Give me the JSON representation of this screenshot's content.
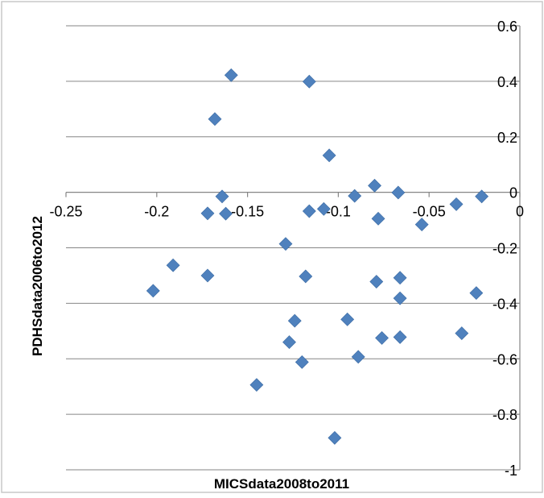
{
  "chart_data": {
    "type": "scatter",
    "title": "",
    "xlabel": "MICSdata2008to2011",
    "ylabel": "PDHSdata2006to2012",
    "xlim": [
      -0.25,
      0
    ],
    "ylim": [
      -1,
      0.6
    ],
    "x_ticks": [
      -0.25,
      -0.2,
      -0.15,
      -0.1,
      -0.05,
      0
    ],
    "y_ticks": [
      0.6,
      0.4,
      0.2,
      0,
      -0.2,
      -0.4,
      -0.6,
      -0.8,
      -1
    ],
    "x_tick_labels": [
      "-0.25",
      "-0.2",
      "-0.15",
      "-0.1",
      "-0.05",
      "0"
    ],
    "y_tick_labels": [
      "0.6",
      "0.4",
      "0.2",
      "0",
      "-0.2",
      "-0.4",
      "-0.6",
      "-0.8",
      "-1"
    ],
    "grid": "horizontal",
    "legend": "none",
    "series": [
      {
        "color": "#4f81bd",
        "marker": "diamond",
        "points": [
          [
            -0.159,
            0.422
          ],
          [
            -0.116,
            0.399
          ],
          [
            -0.168,
            0.264
          ],
          [
            -0.105,
            0.133
          ],
          [
            -0.08,
            0.024
          ],
          [
            -0.067,
            -0.001
          ],
          [
            -0.091,
            -0.013
          ],
          [
            -0.164,
            -0.015
          ],
          [
            -0.021,
            -0.015
          ],
          [
            -0.035,
            -0.043
          ],
          [
            -0.108,
            -0.06
          ],
          [
            -0.116,
            -0.068
          ],
          [
            -0.172,
            -0.076
          ],
          [
            -0.162,
            -0.077
          ],
          [
            -0.078,
            -0.095
          ],
          [
            -0.054,
            -0.116
          ],
          [
            -0.129,
            -0.186
          ],
          [
            -0.191,
            -0.263
          ],
          [
            -0.172,
            -0.3
          ],
          [
            -0.118,
            -0.303
          ],
          [
            -0.066,
            -0.308
          ],
          [
            -0.079,
            -0.322
          ],
          [
            -0.202,
            -0.355
          ],
          [
            -0.024,
            -0.363
          ],
          [
            -0.066,
            -0.382
          ],
          [
            -0.095,
            -0.458
          ],
          [
            -0.124,
            -0.463
          ],
          [
            -0.032,
            -0.508
          ],
          [
            -0.066,
            -0.522
          ],
          [
            -0.076,
            -0.525
          ],
          [
            -0.127,
            -0.54
          ],
          [
            -0.089,
            -0.593
          ],
          [
            -0.12,
            -0.612
          ],
          [
            -0.145,
            -0.694
          ],
          [
            -0.102,
            -0.885
          ]
        ]
      }
    ]
  }
}
